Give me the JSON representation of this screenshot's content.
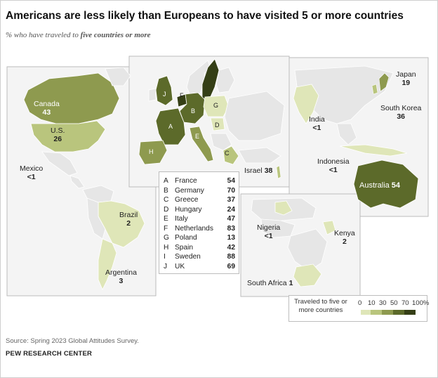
{
  "title": "Americans are less likely than Europeans to have visited 5 or more countries",
  "subtitle_prefix": "% who have traveled to ",
  "subtitle_emph": "five countries or more",
  "regions": {
    "americas": [
      {
        "name": "Canada",
        "value": "43"
      },
      {
        "name": "U.S.",
        "value": "26"
      },
      {
        "name": "Mexico",
        "value": "<1"
      },
      {
        "name": "Brazil",
        "value": "2"
      },
      {
        "name": "Argentina",
        "value": "3"
      }
    ],
    "asia": [
      {
        "name": "Japan",
        "value": "19"
      },
      {
        "name": "South Korea",
        "value": "36"
      },
      {
        "name": "India",
        "value": "<1"
      },
      {
        "name": "Indonesia",
        "value": "<1"
      },
      {
        "name": "Australia",
        "value": "54"
      },
      {
        "name": "Israel",
        "value": "38"
      }
    ],
    "africa": [
      {
        "name": "Nigeria",
        "value": "<1"
      },
      {
        "name": "Kenya",
        "value": "2"
      },
      {
        "name": "South Africa",
        "value": "1"
      }
    ]
  },
  "europe_legend": [
    {
      "key": "A",
      "name": "France",
      "value": "54"
    },
    {
      "key": "B",
      "name": "Germany",
      "value": "70"
    },
    {
      "key": "C",
      "name": "Greece",
      "value": "37"
    },
    {
      "key": "D",
      "name": "Hungary",
      "value": "24"
    },
    {
      "key": "E",
      "name": "Italy",
      "value": "47"
    },
    {
      "key": "F",
      "name": "Netherlands",
      "value": "83"
    },
    {
      "key": "G",
      "name": "Poland",
      "value": "13"
    },
    {
      "key": "H",
      "name": "Spain",
      "value": "42"
    },
    {
      "key": "I",
      "name": "Sweden",
      "value": "88"
    },
    {
      "key": "J",
      "name": "UK",
      "value": "69"
    }
  ],
  "color_scale": {
    "title": "Traveled to five or more countries",
    "ticks": [
      "0",
      "10",
      "30",
      "50",
      "70",
      "100%"
    ],
    "colors": [
      "#f2f2f2",
      "#dfe6b8",
      "#b9c57d",
      "#8e9a4f",
      "#5c6a2a",
      "#353f16"
    ]
  },
  "source": "Source: Spring 2023 Global Attitudes Survey.",
  "brand": "PEW RESEARCH CENTER"
}
